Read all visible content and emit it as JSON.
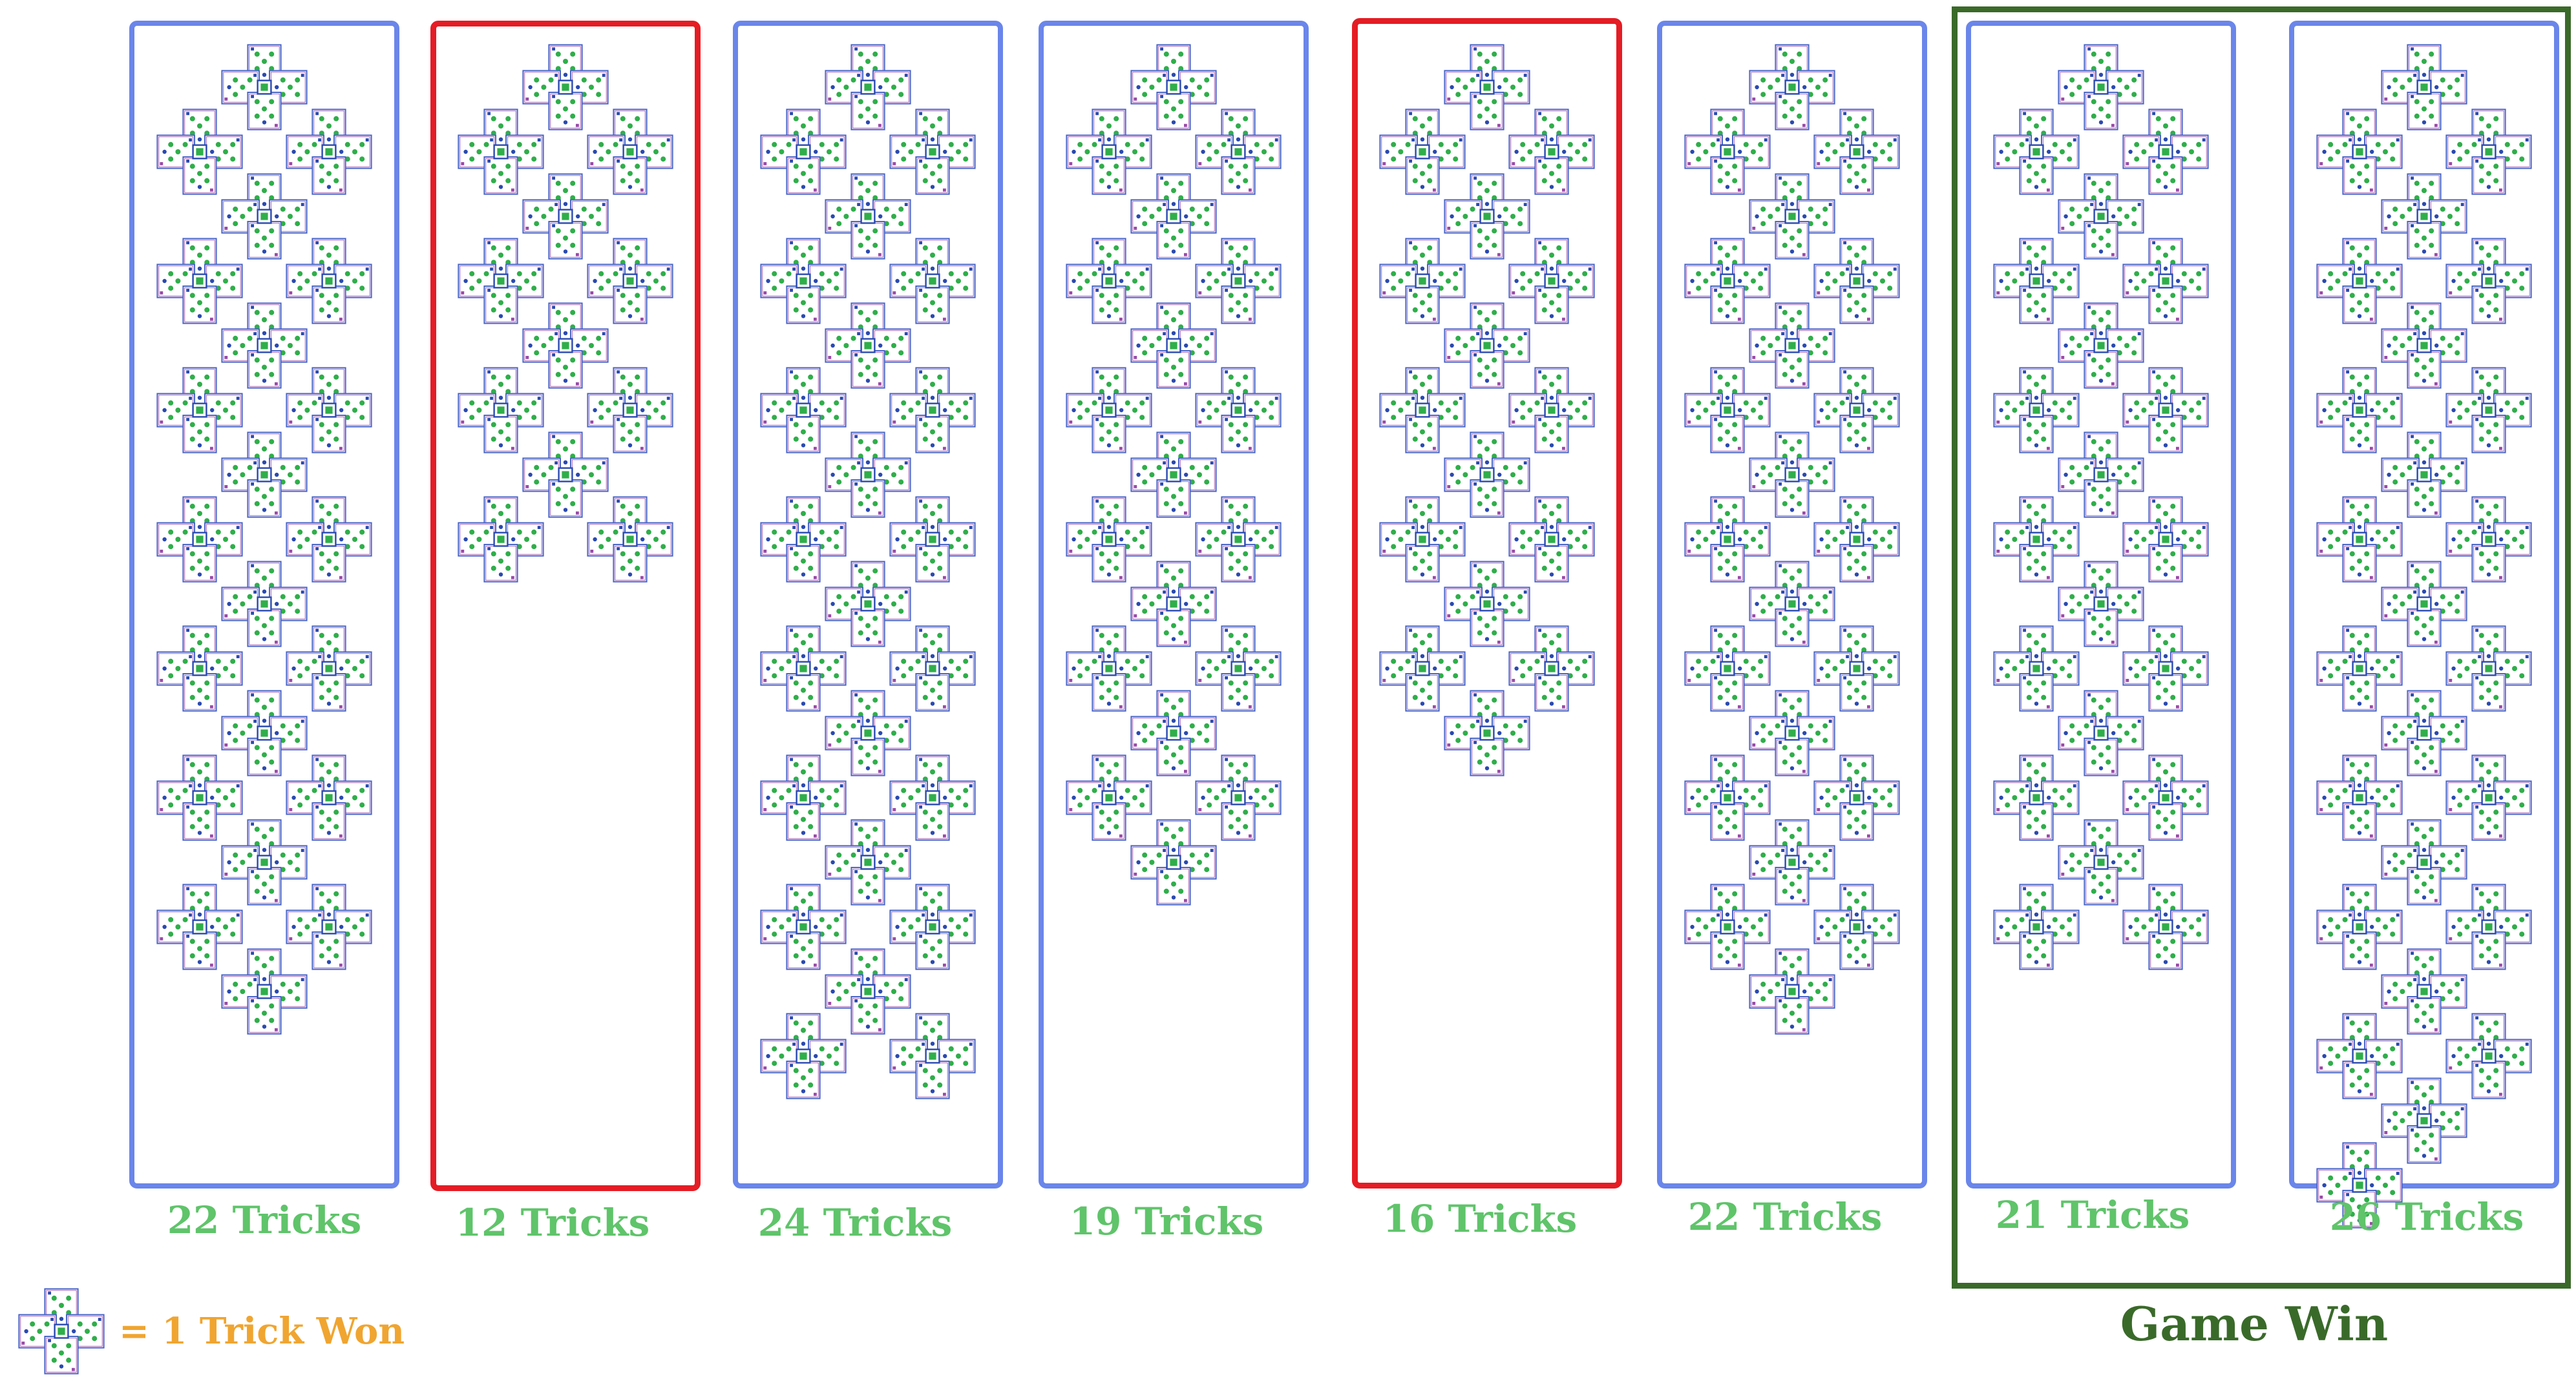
{
  "games": [
    {
      "tricks": 22,
      "label": "22 Tricks",
      "result": "normal"
    },
    {
      "tricks": 12,
      "label": "12 Tricks",
      "result": "lost"
    },
    {
      "tricks": 24,
      "label": "24 Tricks",
      "result": "normal"
    },
    {
      "tricks": 19,
      "label": "19 Tricks",
      "result": "normal"
    },
    {
      "tricks": 16,
      "label": "16 Tricks",
      "result": "lost"
    },
    {
      "tricks": 22,
      "label": "22 Tricks",
      "result": "normal"
    },
    {
      "tricks": 21,
      "label": "21 Tricks",
      "result": "normal"
    },
    {
      "tricks": 26,
      "label": "26 Tricks",
      "result": "normal"
    }
  ],
  "game_win": {
    "label": "Game Win",
    "games_included": [
      7,
      8
    ]
  },
  "legend": {
    "text": "= 1 Trick Won",
    "icon": "four-card-cross-icon"
  },
  "colors": {
    "panel_border": "#6a86ea",
    "lost_border": "#e51c24",
    "win_border": "#3a6a2a",
    "count_label": "#5fc46a",
    "legend_text": "#f0a530",
    "card_border_blue": "#4a64c8",
    "card_border_purple": "#9a4aa8",
    "card_pip_green": "#2fae4a",
    "card_pip_blue": "#2a4ab0"
  }
}
